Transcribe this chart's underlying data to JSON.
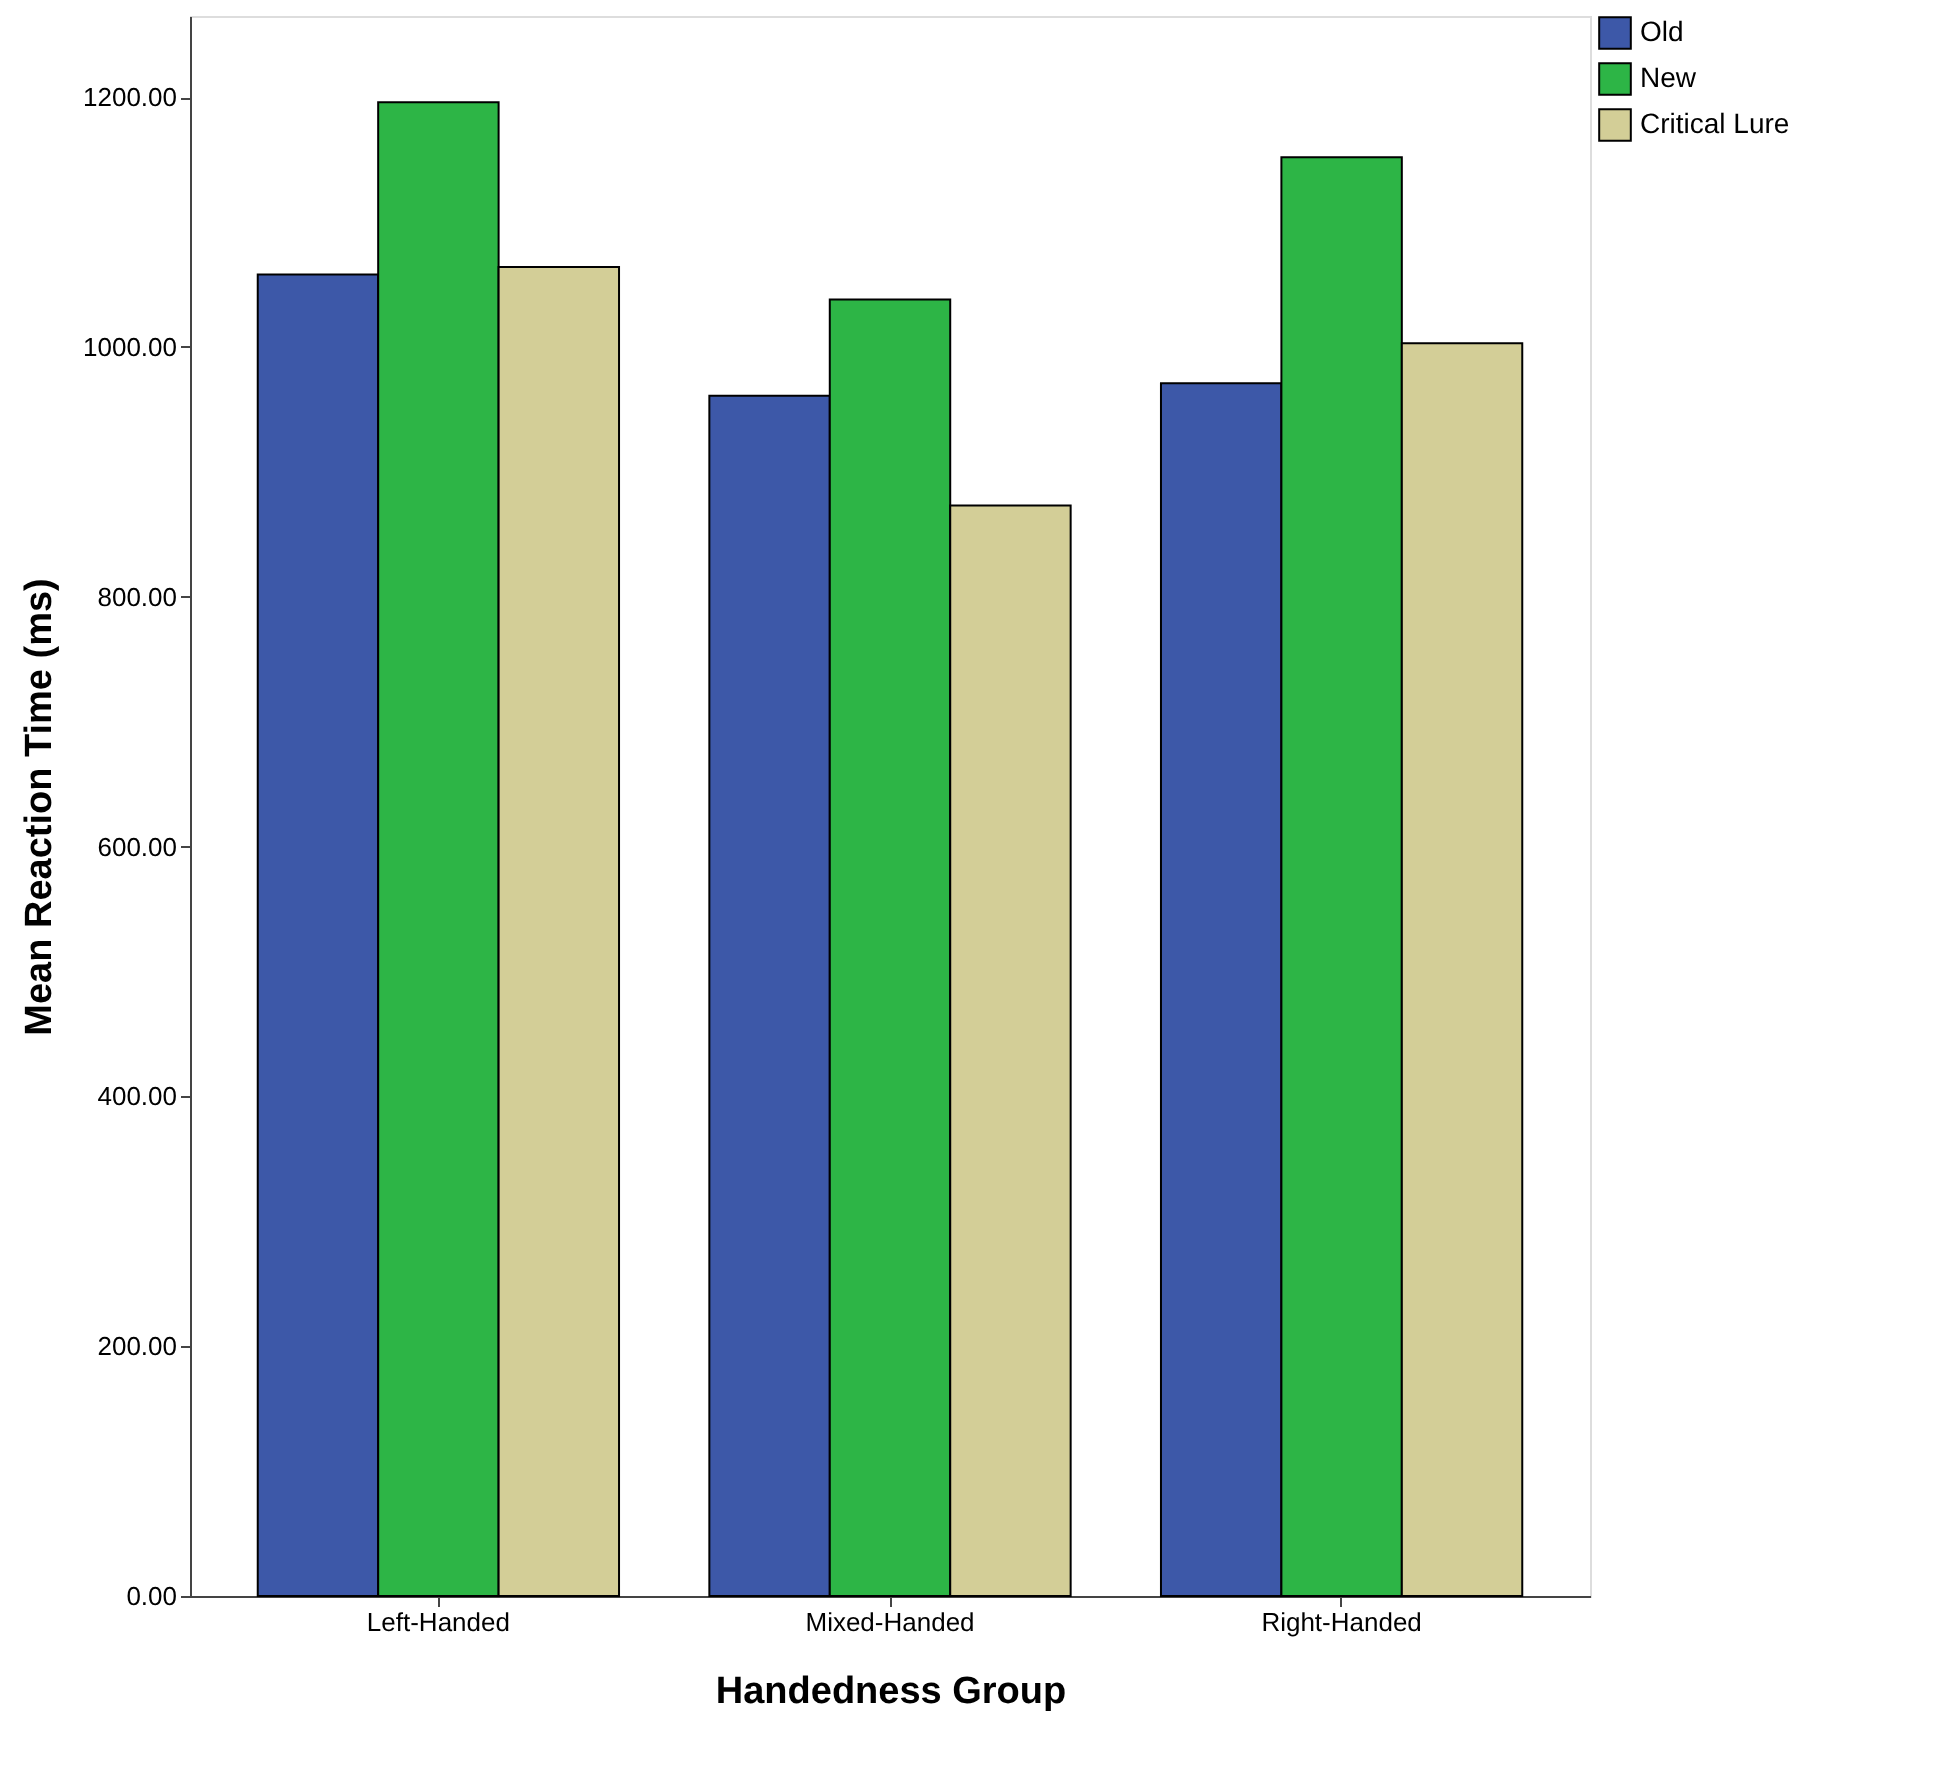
{
  "chart_data": {
    "type": "bar",
    "xlabel": "Handedness Group",
    "ylabel": "Mean Reaction Time (ms)",
    "categories": [
      "Left-Handed",
      "Mixed-Handed",
      "Right-Handed"
    ],
    "series": [
      {
        "name": "Old",
        "color": "#3d58a8",
        "values": [
          1058,
          961,
          971
        ]
      },
      {
        "name": "New",
        "color": "#2db546",
        "values": [
          1196,
          1038,
          1152
        ]
      },
      {
        "name": "Critical Lure",
        "color": "#d3ce97",
        "values": [
          1064,
          873,
          1003
        ]
      }
    ],
    "ylim": [
      0,
      1265
    ],
    "yticks": [
      {
        "value": 0,
        "label": "0.00"
      },
      {
        "value": 200,
        "label": "200.00"
      },
      {
        "value": 400,
        "label": "400.00"
      },
      {
        "value": 600,
        "label": "600.00"
      },
      {
        "value": 800,
        "label": "800.00"
      },
      {
        "value": 1000,
        "label": "1000.00"
      },
      {
        "value": 1200,
        "label": "1200.00"
      }
    ],
    "grid": false,
    "legend": "top right"
  }
}
